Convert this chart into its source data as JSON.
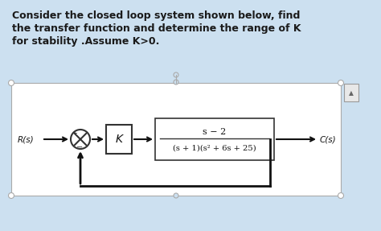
{
  "bg_color": "#cce0f0",
  "diagram_bg": "#ffffff",
  "title_lines": [
    "Consider the closed loop system shown below, find",
    "the transfer function and determine the range of K",
    "for stability .Assume K>0."
  ],
  "title_fontsize": 9.0,
  "title_color": "#1a1a1a",
  "R_label": "R(s)",
  "C_label": "C(s)",
  "K_label": "K",
  "tf_numerator": "s − 2",
  "tf_denominator": "(s + 1)(s² + 6s + 25)",
  "block_edge_color": "#333333",
  "arrow_color": "#111111",
  "feedback_color": "#111111",
  "summing_junction_color": "#333333",
  "corner_circle_color": "#aaaaaa",
  "scroll_edge": "#999999",
  "scroll_bg": "#e8e8e8"
}
